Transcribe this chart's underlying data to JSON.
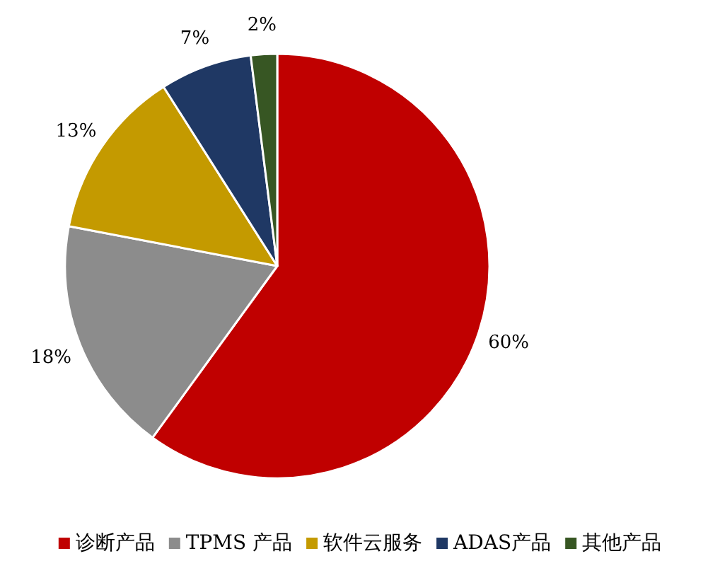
{
  "chart_data": {
    "type": "pie",
    "categories": [
      "诊断产品",
      "TPMS 产品",
      "软件云服务",
      "ADAS产品",
      "其他产品"
    ],
    "values": [
      60,
      18,
      13,
      7,
      2
    ],
    "colors": [
      "#c00000",
      "#8c8c8c",
      "#c49a00",
      "#1f3864",
      "#375623"
    ],
    "value_labels": [
      "60%",
      "18%",
      "13%",
      "7%",
      "2%"
    ],
    "legend": "bottom"
  }
}
